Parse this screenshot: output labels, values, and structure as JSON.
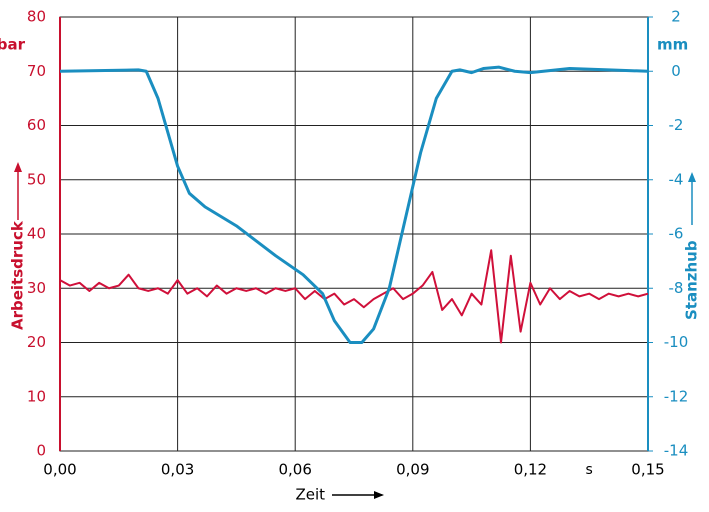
{
  "chart_data": {
    "type": "line",
    "xlabel": "Zeit",
    "x_unit": "s",
    "ylabel": "Arbeitsdruck",
    "y_unit": "bar",
    "y2label": "Stanzhub",
    "y2_unit": "mm",
    "xlim": [
      0,
      0.15
    ],
    "xticks": [
      {
        "value": 0,
        "label": "0,00"
      },
      {
        "value": 0.03,
        "label": "0,03"
      },
      {
        "value": 0.06,
        "label": "0,06"
      },
      {
        "value": 0.09,
        "label": "0,09"
      },
      {
        "value": 0.12,
        "label": "0,12"
      },
      {
        "value": 0.15,
        "label": "0,15"
      }
    ],
    "ylim": [
      0,
      80
    ],
    "yticks": [
      0,
      10,
      20,
      30,
      40,
      50,
      60,
      70,
      80
    ],
    "y2lim": [
      -14,
      2
    ],
    "y2ticks": [
      -14,
      -12,
      -10,
      -8,
      -6,
      -4,
      -2,
      0,
      2
    ],
    "grid": true,
    "label_color": "#c8102e",
    "label2_color": "#1a8ec0",
    "series": [
      {
        "name": "Arbeitsdruck",
        "color": "#d0103a",
        "x": [
          0,
          0.0025,
          0.005,
          0.0075,
          0.01,
          0.0125,
          0.015,
          0.0175,
          0.02,
          0.0225,
          0.025,
          0.0275,
          0.03,
          0.0325,
          0.035,
          0.0375,
          0.04,
          0.0425,
          0.045,
          0.0475,
          0.05,
          0.0525,
          0.055,
          0.0575,
          0.06,
          0.0625,
          0.065,
          0.0675,
          0.07,
          0.0725,
          0.075,
          0.0775,
          0.08,
          0.0825,
          0.085,
          0.0875,
          0.09,
          0.0925,
          0.095,
          0.0975,
          0.1,
          0.1025,
          0.105,
          0.1075,
          0.11,
          0.1125,
          0.115,
          0.1175,
          0.12,
          0.1225,
          0.125,
          0.1275,
          0.13,
          0.1325,
          0.135,
          0.1375,
          0.14,
          0.1425,
          0.145,
          0.1475,
          0.15
        ],
        "values": [
          31.5,
          30.5,
          31,
          29.5,
          31,
          30,
          30.5,
          32.5,
          30,
          29.5,
          30,
          29,
          31.5,
          29,
          30,
          28.5,
          30.5,
          29,
          30,
          29.5,
          30,
          29,
          30,
          29.5,
          30,
          28,
          29.5,
          28,
          29,
          27,
          28,
          26.5,
          28,
          29,
          30,
          28,
          29,
          30.5,
          33,
          26,
          28,
          25,
          29,
          27,
          37,
          20,
          36,
          22,
          31,
          27,
          30,
          28,
          29.5,
          28.5,
          29,
          28,
          29,
          28.5,
          29,
          28.5,
          29
        ]
      },
      {
        "name": "Stanzhub",
        "color": "#1a8ec0",
        "axis": "y2",
        "x": [
          0,
          0.02,
          0.022,
          0.025,
          0.03,
          0.033,
          0.037,
          0.045,
          0.055,
          0.062,
          0.067,
          0.07,
          0.074,
          0.077,
          0.08,
          0.084,
          0.088,
          0.092,
          0.096,
          0.1,
          0.102,
          0.105,
          0.108,
          0.112,
          0.116,
          0.12,
          0.13,
          0.14,
          0.15
        ],
        "values": [
          0,
          0.05,
          0,
          -1,
          -3.5,
          -4.5,
          -5,
          -5.7,
          -6.8,
          -7.5,
          -8.2,
          -9.2,
          -10,
          -10,
          -9.5,
          -8,
          -5.5,
          -3,
          -1,
          0,
          0.05,
          -0.05,
          0.1,
          0.15,
          0,
          -0.05,
          0.1,
          0.05,
          0
        ]
      }
    ]
  }
}
